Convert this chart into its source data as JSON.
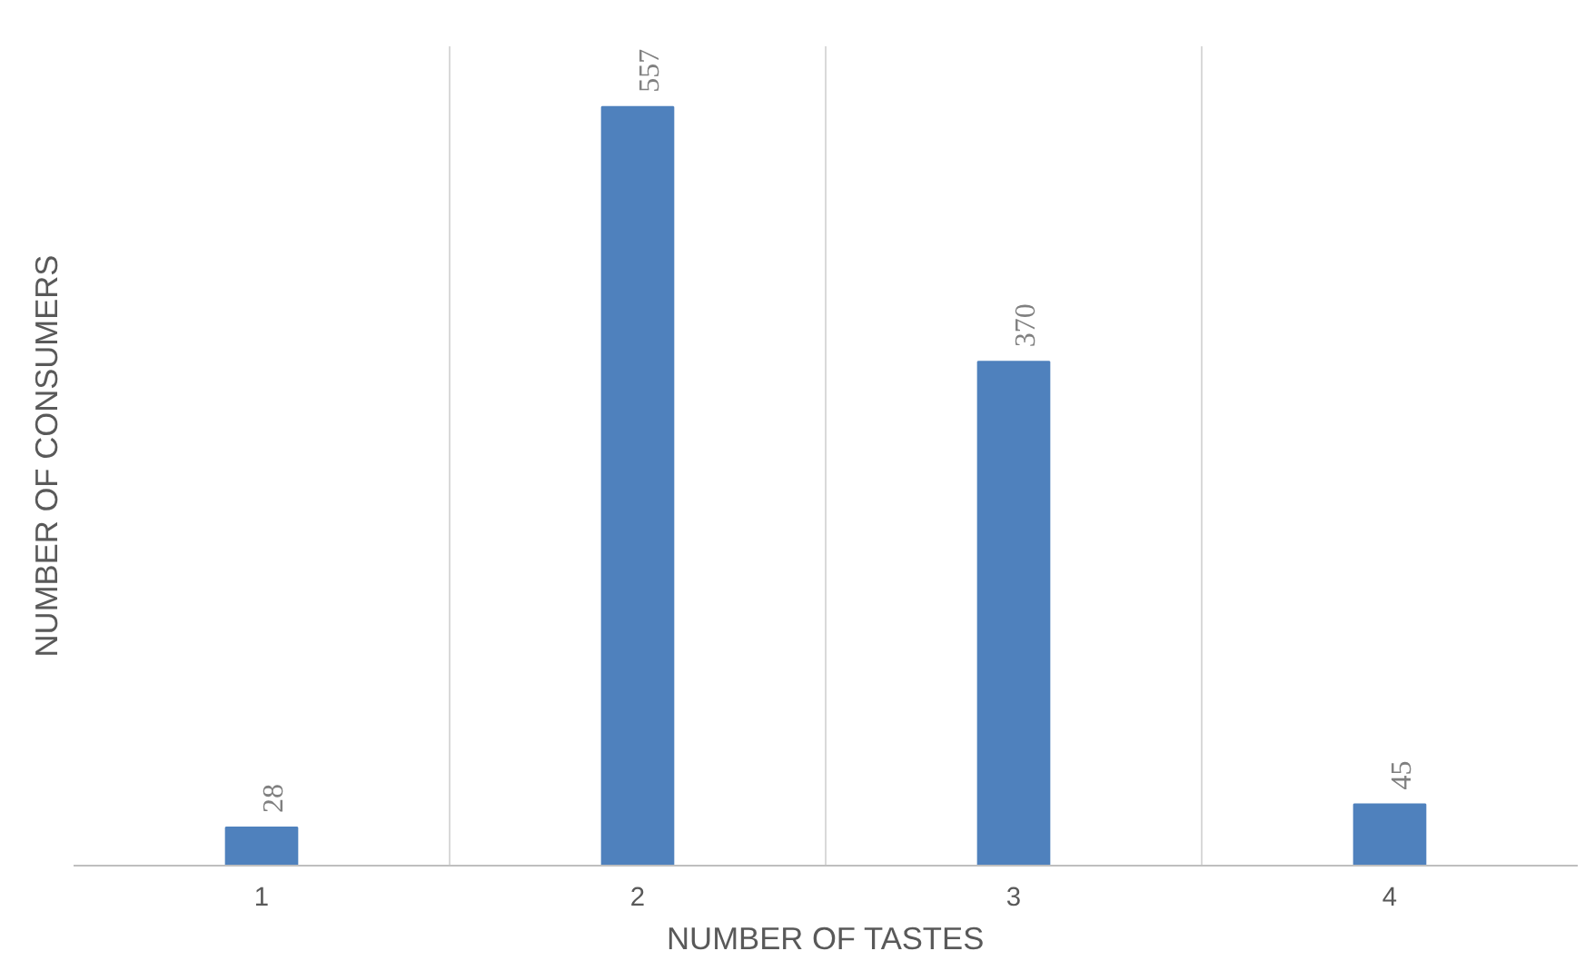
{
  "chart_data": {
    "type": "bar",
    "xlabel": "NUMBER OF TASTES",
    "ylabel": "NUMBER OF CONSUMERS",
    "categories": [
      "1",
      "2",
      "3",
      "4"
    ],
    "values": [
      28,
      557,
      370,
      45
    ],
    "color": "#4f81bd",
    "data_labels": true,
    "grid": "x"
  }
}
